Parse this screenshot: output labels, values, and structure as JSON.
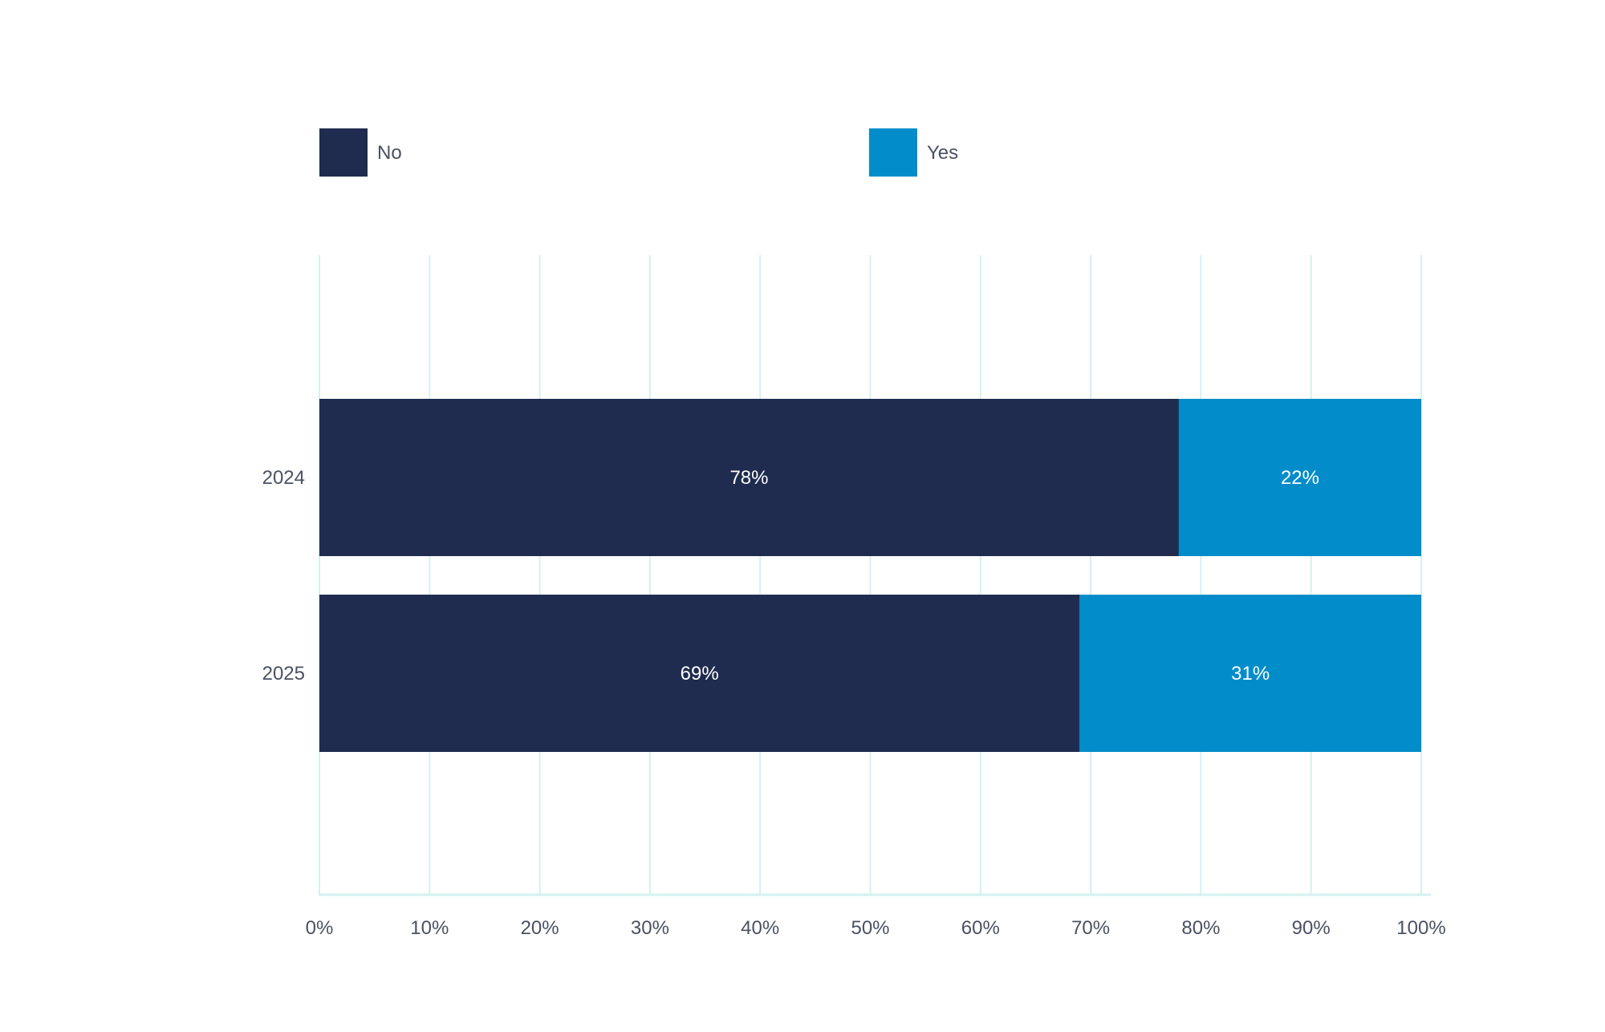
{
  "chart_data": {
    "type": "bar",
    "orientation": "horizontal",
    "stacked": true,
    "categories": [
      "2024",
      "2025"
    ],
    "series": [
      {
        "name": "No",
        "color": "#1f2c50",
        "values": [
          78,
          69
        ],
        "labels": [
          "78%",
          "69%"
        ]
      },
      {
        "name": "Yes",
        "color": "#028dca",
        "values": [
          22,
          31
        ],
        "labels": [
          "22%",
          "31%"
        ]
      }
    ],
    "xlim": [
      0,
      100
    ],
    "x_ticks": [
      0,
      10,
      20,
      30,
      40,
      50,
      60,
      70,
      80,
      90,
      100
    ],
    "x_tick_labels": [
      "0%",
      "10%",
      "20%",
      "30%",
      "40%",
      "50%",
      "60%",
      "70%",
      "80%",
      "90%",
      "100%"
    ],
    "grid": true,
    "grid_color": "#d3f1ef",
    "legend_position": "top"
  }
}
